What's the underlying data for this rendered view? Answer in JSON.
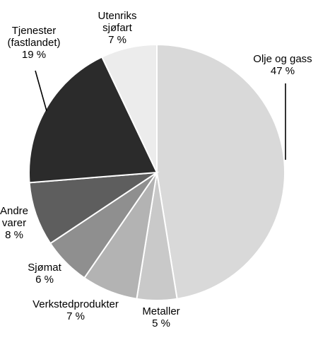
{
  "chart_data": {
    "type": "pie",
    "title": "",
    "slices": [
      {
        "label": [
          "Olje og gass"
        ],
        "value": 47,
        "display": "47 %",
        "color": "#d9d9d9"
      },
      {
        "label": [
          "Metaller"
        ],
        "value": 5,
        "display": "5 %",
        "color": "#c9c9c9"
      },
      {
        "label": [
          "Verkstedprodukter"
        ],
        "value": 7,
        "display": "7 %",
        "color": "#b3b3b3"
      },
      {
        "label": [
          "Sjømat"
        ],
        "value": 6,
        "display": "6 %",
        "color": "#8f8f8f"
      },
      {
        "label": [
          "Andre",
          "varer"
        ],
        "value": 8,
        "display": "8 %",
        "color": "#5e5e5e"
      },
      {
        "label": [
          "Tjenester",
          "(fastlandet)"
        ],
        "value": 19,
        "display": "19 %",
        "color": "#2b2b2b"
      },
      {
        "label": [
          "Utenriks",
          "sjøfart"
        ],
        "value": 7,
        "display": "7 %",
        "color": "#ececec"
      }
    ]
  }
}
